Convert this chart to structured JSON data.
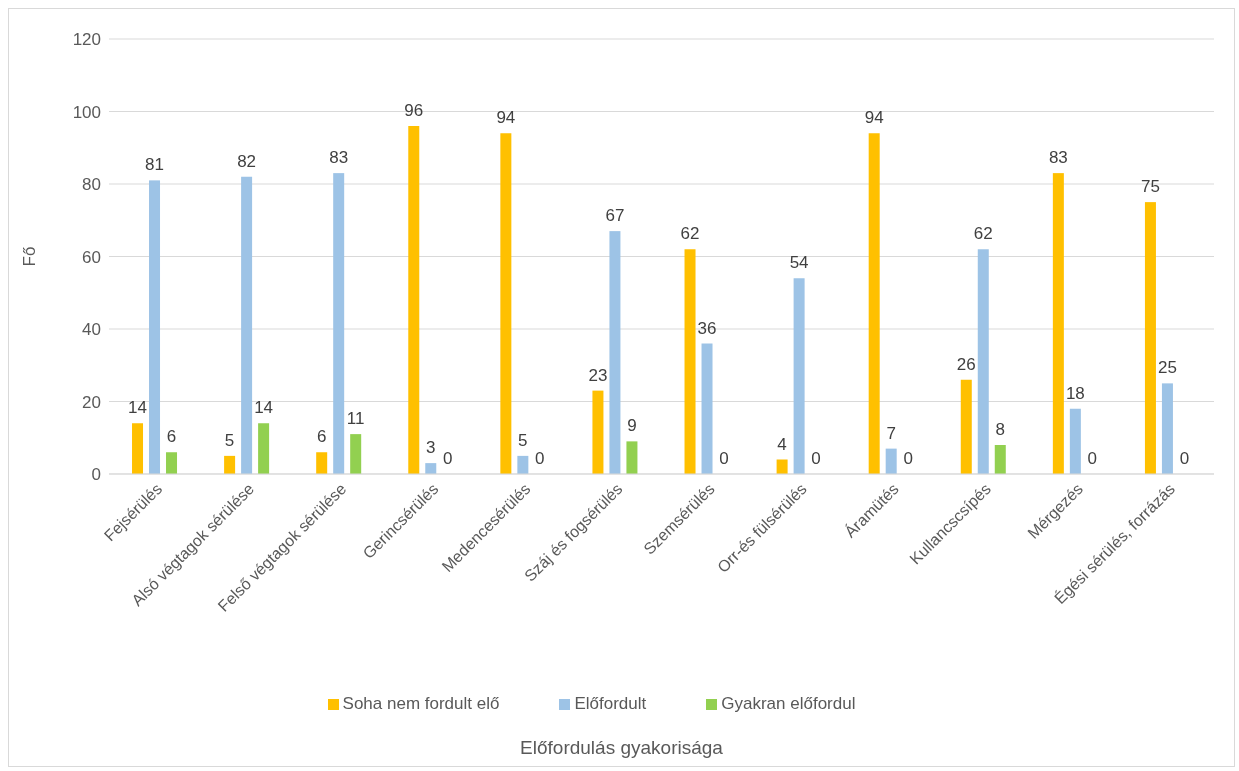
{
  "chart_data": {
    "type": "bar",
    "annotations": [
      "Előfordulás gyakorisága"
    ],
    "ylabel": "Fő",
    "categories": [
      "Fejsérülés",
      "Alsó végtagok sérülése",
      "Felső végtagok sérülése",
      "Gerincsérülés",
      "Medencesérülés",
      "Száj és fogsérülés",
      "Szemsérülés",
      "Orr-és fülsérülés",
      "Áramütés",
      "Kullancscsípés",
      "Mérgezés",
      "Égési sérülés, forrázás"
    ],
    "series": [
      {
        "name": "Soha nem fordult elő",
        "color": "#ffc000",
        "values": [
          14,
          5,
          6,
          96,
          94,
          23,
          62,
          4,
          94,
          26,
          83,
          75
        ]
      },
      {
        "name": "Előfordult",
        "color": "#9dc3e6",
        "values": [
          81,
          82,
          83,
          3,
          5,
          67,
          36,
          54,
          7,
          62,
          18,
          25
        ]
      },
      {
        "name": "Gyakran előfordul",
        "color": "#92d050",
        "values": [
          6,
          14,
          11,
          0,
          0,
          9,
          0,
          0,
          0,
          8,
          0,
          0
        ]
      }
    ],
    "ylim": [
      0,
      120
    ],
    "yticks": [
      0,
      20,
      40,
      60,
      80,
      100,
      120
    ],
    "grid": "y",
    "legend": "bottom",
    "data_labels": true
  }
}
